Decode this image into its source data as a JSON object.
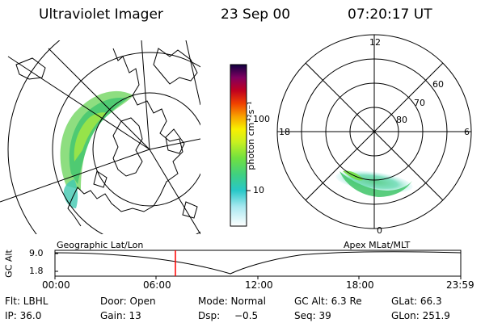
{
  "header": {
    "title": "Ultraviolet Imager",
    "date": "23 Sep 00",
    "time": "07:20:17 UT"
  },
  "colorbar": {
    "unit_label": "photon cm⁻²s⁻¹",
    "ticks": [
      "100",
      "10"
    ]
  },
  "polar": {
    "lat_labels": [
      "60",
      "70",
      "80"
    ],
    "mlt_labels": {
      "top": "12",
      "left": "18",
      "right": "6",
      "bottom": "0"
    }
  },
  "timeline": {
    "left_title": "Geographic Lat/Lon",
    "right_title": "Apex MLat/MLT",
    "axis_label": "GC Alt",
    "y_ticks": [
      "9.0",
      "1.8"
    ],
    "x_ticks": [
      "00:00",
      "06:00",
      "12:00",
      "18:00",
      "23:59"
    ],
    "marker_time": "07:20:17",
    "marker_color": "#ff0000"
  },
  "info": {
    "row1": [
      "Flt: LBHL",
      "Door: Open",
      "Mode: Normal",
      "GC Alt: 6.3 Re",
      "GLat: 66.3"
    ],
    "row2": [
      "IP: 36.0",
      "Gain: 13",
      "Dsp:",
      "−0.5",
      "Seq: 39",
      "GLon: 251.9"
    ]
  }
}
